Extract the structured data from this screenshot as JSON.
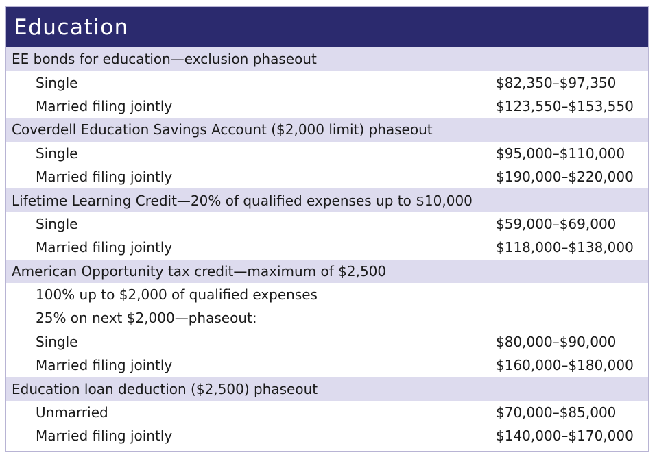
{
  "title": "Education",
  "sections": [
    {
      "heading": "EE bonds for education—exclusion phaseout",
      "rows": [
        {
          "label": "Single",
          "value": "$82,350–$97,350"
        },
        {
          "label": "Married filing jointly",
          "value": "$123,550–$153,550"
        }
      ]
    },
    {
      "heading": "Coverdell Education Savings Account ($2,000 limit) phaseout",
      "rows": [
        {
          "label": "Single",
          "value": "$95,000–$110,000"
        },
        {
          "label": "Married filing jointly",
          "value": "$190,000–$220,000"
        }
      ]
    },
    {
      "heading": "Lifetime Learning Credit—20% of qualified expenses up to $10,000",
      "rows": [
        {
          "label": "Single",
          "value": "$59,000–$69,000"
        },
        {
          "label": "Married filing jointly",
          "value": "$118,000–$138,000"
        }
      ]
    },
    {
      "heading": "American Opportunity tax credit—maximum of $2,500",
      "rows": [
        {
          "label": "100% up to $2,000 of qualified expenses",
          "value": ""
        },
        {
          "label": "25% on next $2,000—phaseout:",
          "value": ""
        },
        {
          "label": "Single",
          "value": "$80,000–$90,000"
        },
        {
          "label": "Married filing jointly",
          "value": "$160,000–$180,000"
        }
      ]
    },
    {
      "heading": "Education loan deduction ($2,500) phaseout",
      "rows": [
        {
          "label": "Unmarried",
          "value": "$70,000–$85,000"
        },
        {
          "label": "Married filing jointly",
          "value": "$140,000–$170,000"
        }
      ]
    }
  ]
}
